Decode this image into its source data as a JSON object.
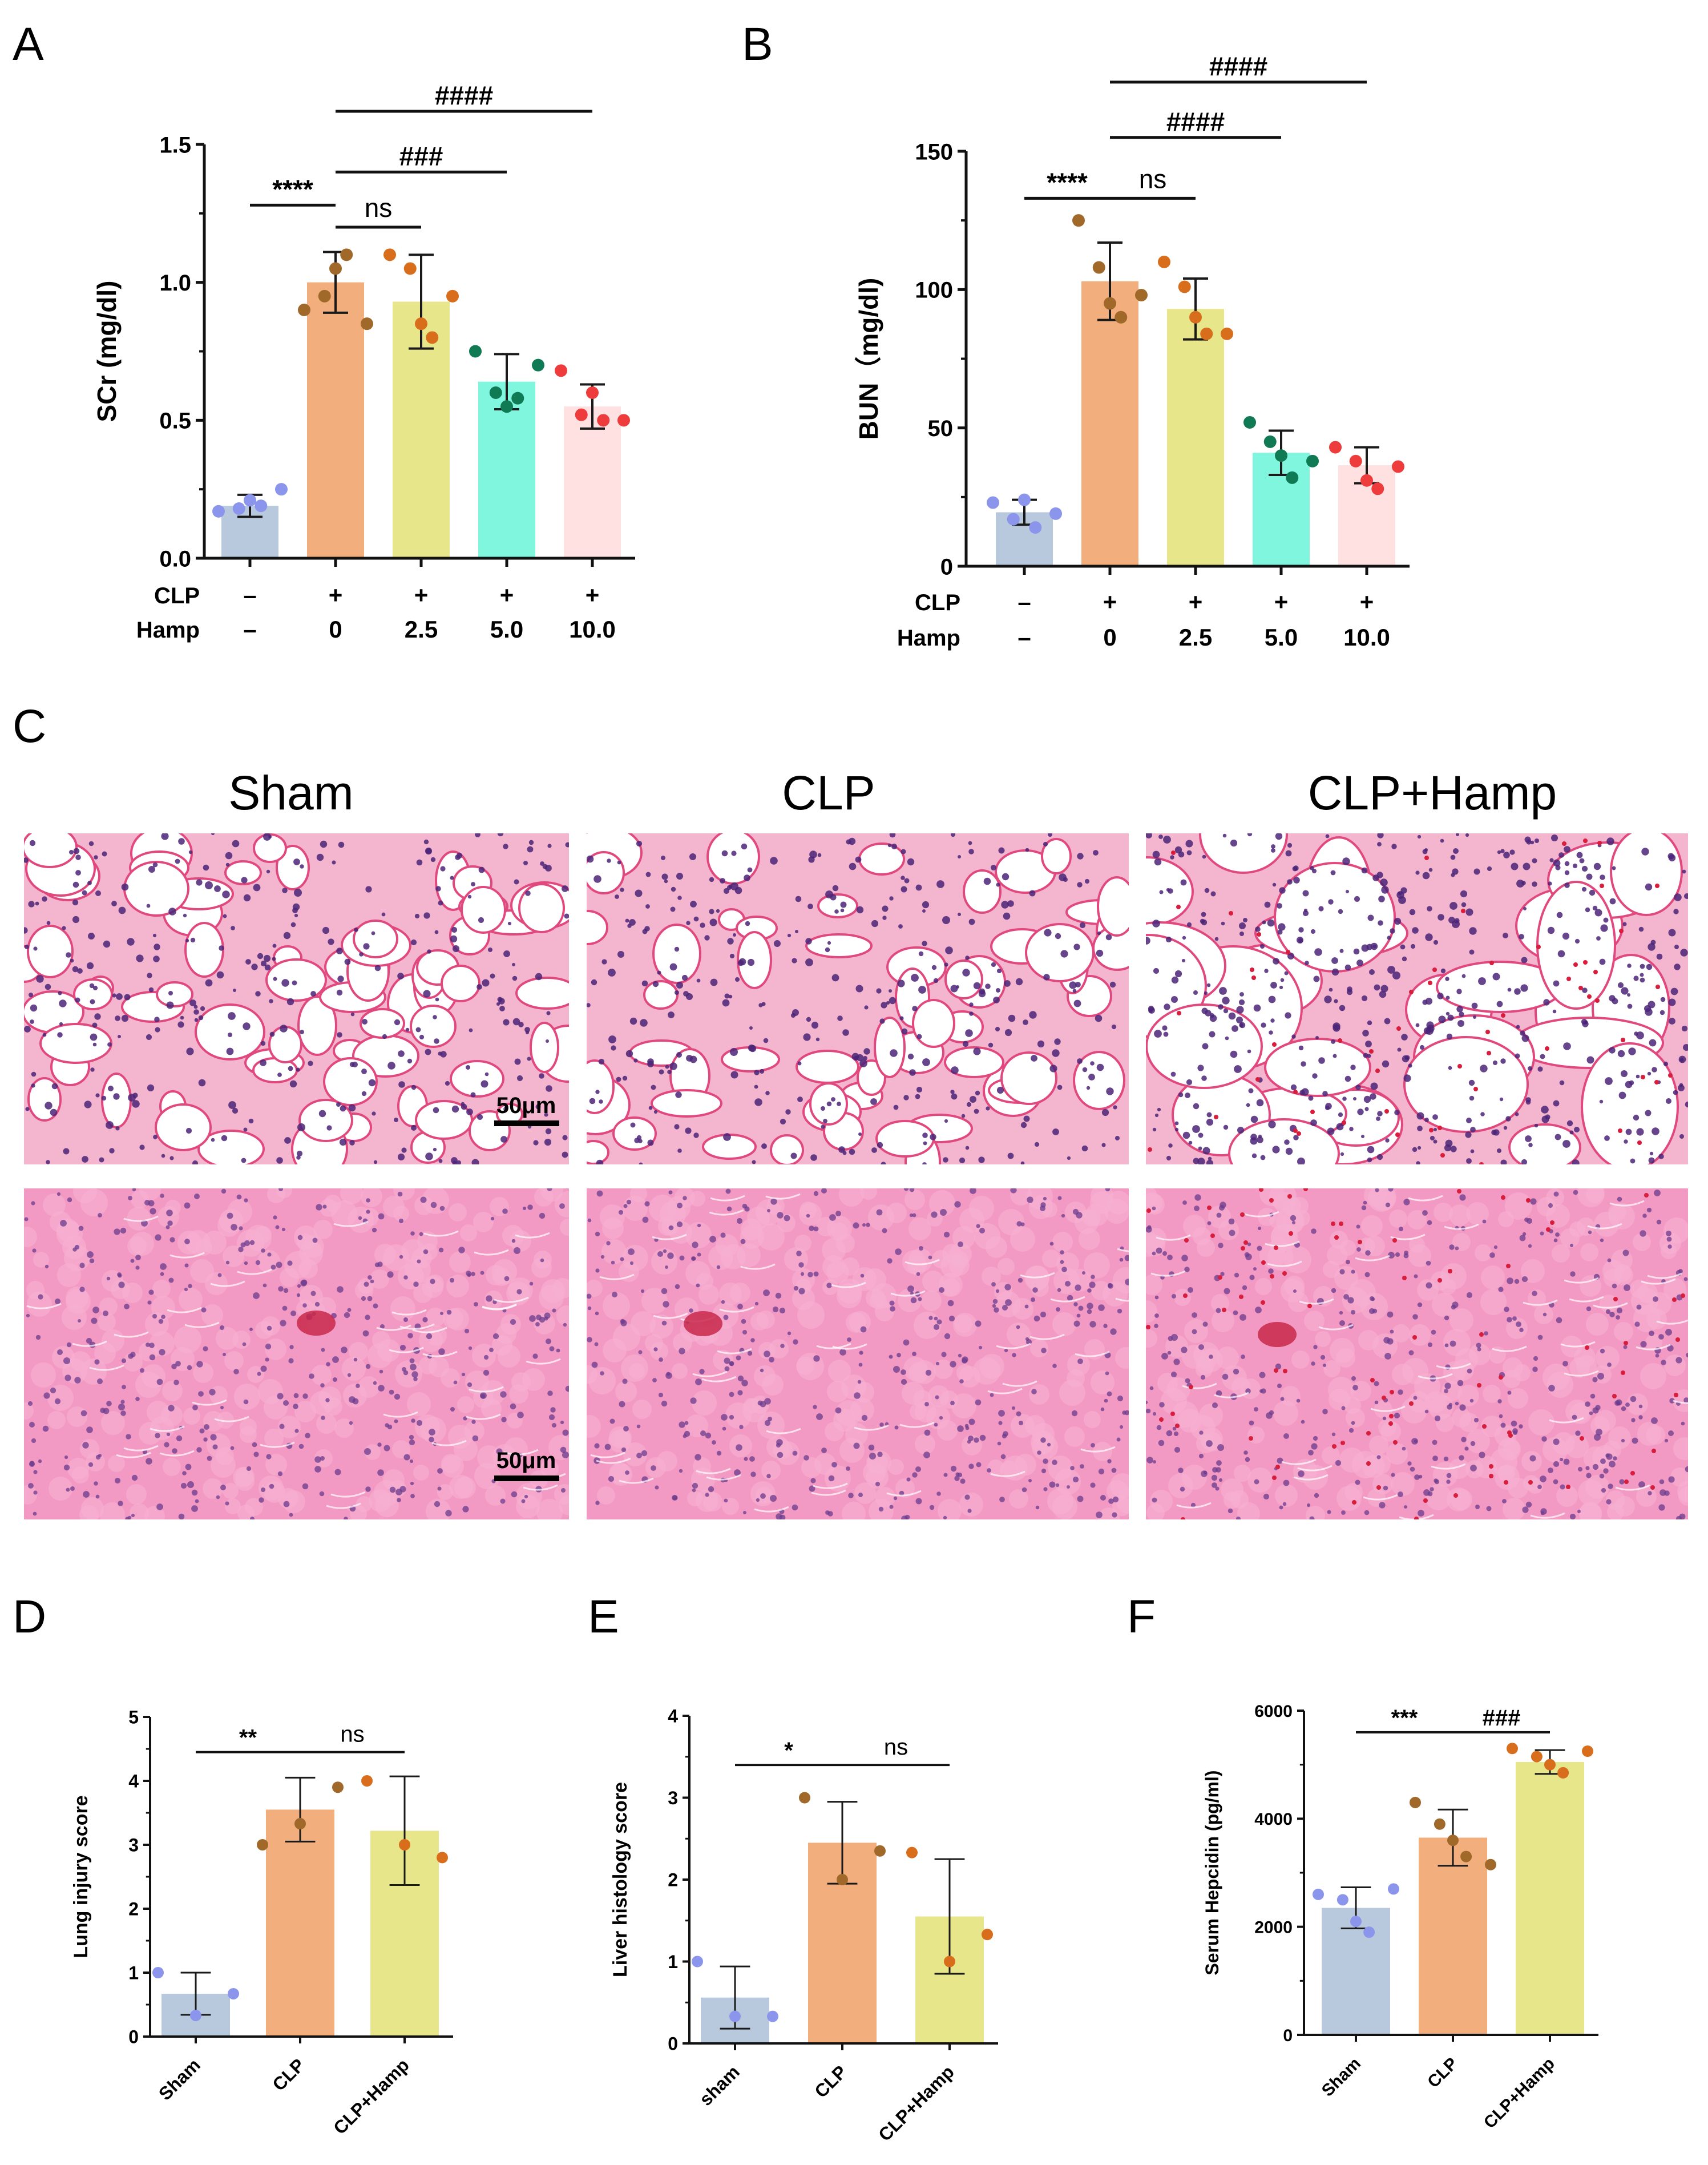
{
  "panels": {
    "A": {
      "letter": "A"
    },
    "B": {
      "letter": "B"
    },
    "C": {
      "letter": "C",
      "columns": [
        "Sham",
        "CLP",
        "CLP+Hamp"
      ],
      "scale_bar_label": "50μm"
    },
    "D": {
      "letter": "D"
    },
    "E": {
      "letter": "E"
    },
    "F": {
      "letter": "F"
    }
  },
  "chart_data": [
    {
      "panel": "A",
      "type": "bar",
      "ylabel": "SCr (mg/dl)",
      "ylim": [
        0,
        1.5
      ],
      "yticks": [
        "0.0",
        "0.5",
        "1.0",
        "1.5"
      ],
      "row_labels": [
        "CLP",
        "Hamp"
      ],
      "condition_rows": [
        [
          "–",
          "+",
          "+",
          "+",
          "+"
        ],
        [
          "–",
          "0",
          "2.5",
          "5.0",
          "10.0"
        ]
      ],
      "values": [
        0.19,
        1.0,
        0.93,
        0.64,
        0.55
      ],
      "sd": [
        0.04,
        0.11,
        0.17,
        0.1,
        0.08
      ],
      "points": [
        [
          0.17,
          0.18,
          0.21,
          0.19,
          0.25
        ],
        [
          0.9,
          0.95,
          1.05,
          1.1,
          0.85
        ],
        [
          1.1,
          1.05,
          0.85,
          0.8,
          0.95
        ],
        [
          0.75,
          0.6,
          0.55,
          0.58,
          0.7
        ],
        [
          0.68,
          0.52,
          0.6,
          0.5,
          0.5
        ]
      ],
      "colors": [
        "#b9c9dd",
        "#f2ae7c",
        "#e8e68a",
        "#7ff6dd",
        "#ffe1e2"
      ],
      "point_colors": [
        "#8c95ec",
        "#a0692a",
        "#d86d1c",
        "#0f7a53",
        "#ee3b3b"
      ],
      "comparisons": [
        {
          "label": "****",
          "from": 0,
          "to": 1,
          "y": 1.28
        },
        {
          "label": "ns",
          "from": 1,
          "to": 2,
          "y": 1.2
        },
        {
          "label": "###",
          "from": 1,
          "to": 3,
          "y": 1.4
        },
        {
          "label": "####",
          "from": 1,
          "to": 4,
          "y": 1.62
        }
      ]
    },
    {
      "panel": "B",
      "type": "bar",
      "ylabel": "BUN（mg/dl)",
      "ylim": [
        0,
        150
      ],
      "yticks": [
        "0",
        "50",
        "100",
        "150"
      ],
      "row_labels": [
        "CLP",
        "Hamp"
      ],
      "condition_rows": [
        [
          "–",
          "+",
          "+",
          "+",
          "+"
        ],
        [
          "–",
          "0",
          "2.5",
          "5.0",
          "10.0"
        ]
      ],
      "values": [
        19.5,
        103,
        93,
        41,
        36.5
      ],
      "sd": [
        4.5,
        14,
        11,
        8,
        6.5
      ],
      "points": [
        [
          23,
          17,
          24,
          14,
          19
        ],
        [
          125,
          108,
          95,
          90,
          98
        ],
        [
          110,
          101,
          90,
          84,
          84
        ],
        [
          52,
          45,
          40,
          32,
          38
        ],
        [
          43,
          38,
          31,
          28,
          36
        ]
      ],
      "colors": [
        "#b9c9dd",
        "#f2ae7c",
        "#e8e68a",
        "#7ff6dd",
        "#ffe1e2"
      ],
      "point_colors": [
        "#8c95ec",
        "#a0692a",
        "#d86d1c",
        "#0f7a53",
        "#ee3b3b"
      ],
      "comparisons": [
        {
          "label": "****",
          "from": 0,
          "to": 1,
          "y": 133
        },
        {
          "label": "ns",
          "from": 1,
          "to": 2,
          "y": 133
        },
        {
          "label": "####",
          "from": 1,
          "to": 3,
          "y": 155
        },
        {
          "label": "####",
          "from": 1,
          "to": 4,
          "y": 175
        }
      ]
    },
    {
      "panel": "D",
      "type": "bar",
      "ylabel": "Lung injury score",
      "ylim": [
        0,
        5
      ],
      "yticks": [
        "0",
        "1",
        "2",
        "3",
        "4",
        "5"
      ],
      "categories": [
        "Sham",
        "CLP",
        "CLP+Hamp"
      ],
      "values": [
        0.67,
        3.55,
        3.22
      ],
      "sd": [
        0.33,
        0.5,
        0.85
      ],
      "points": [
        [
          1.0,
          0.33,
          0.67
        ],
        [
          3.0,
          3.33,
          3.9
        ],
        [
          4.0,
          3.0,
          2.8
        ]
      ],
      "colors": [
        "#b9c9dd",
        "#f2ae7c",
        "#e8e68a"
      ],
      "point_colors": [
        "#8c95ec",
        "#a0692a",
        "#d86d1c"
      ],
      "comparisons": [
        {
          "label": "**",
          "from": 0,
          "to": 1,
          "y": 4.45
        },
        {
          "label": "ns",
          "from": 1,
          "to": 2,
          "y": 4.45
        }
      ]
    },
    {
      "panel": "E",
      "type": "bar",
      "ylabel": "Liver histology score",
      "ylim": [
        0,
        4
      ],
      "yticks": [
        "0",
        "1",
        "2",
        "3",
        "4"
      ],
      "categories": [
        "sham",
        "CLP",
        "CLP+Hamp"
      ],
      "values": [
        0.56,
        2.45,
        1.55
      ],
      "sd": [
        0.38,
        0.5,
        0.7
      ],
      "points": [
        [
          1.0,
          0.33,
          0.33
        ],
        [
          3.0,
          2.0,
          2.35
        ],
        [
          2.33,
          1.0,
          1.33
        ]
      ],
      "colors": [
        "#b9c9dd",
        "#f2ae7c",
        "#e8e68a"
      ],
      "point_colors": [
        "#8c95ec",
        "#a0692a",
        "#d86d1c"
      ],
      "comparisons": [
        {
          "label": "*",
          "from": 0,
          "to": 1,
          "y": 3.4
        },
        {
          "label": "ns",
          "from": 1,
          "to": 2,
          "y": 3.4
        }
      ]
    },
    {
      "panel": "F",
      "type": "bar",
      "ylabel": "Serum Hepcidin (pg/ml)",
      "ylim": [
        0,
        6000
      ],
      "yticks": [
        "0",
        "2000",
        "4000",
        "6000"
      ],
      "categories": [
        "Sham",
        "CLP",
        "CLP+Hamp"
      ],
      "values": [
        2350,
        3650,
        5050
      ],
      "sd": [
        380,
        520,
        220
      ],
      "points": [
        [
          2600,
          2500,
          2100,
          1900,
          2700
        ],
        [
          4300,
          3900,
          3600,
          3300,
          3150
        ],
        [
          5300,
          5150,
          5000,
          4850,
          5250
        ]
      ],
      "colors": [
        "#b9c9dd",
        "#f2ae7c",
        "#e8e68a"
      ],
      "point_colors": [
        "#8c95ec",
        "#a0692a",
        "#d86d1c"
      ],
      "comparisons": [
        {
          "label": "***",
          "from": 0,
          "to": 1,
          "y": 5600
        },
        {
          "label": "###",
          "from": 1,
          "to": 2,
          "y": 5600
        }
      ]
    }
  ]
}
